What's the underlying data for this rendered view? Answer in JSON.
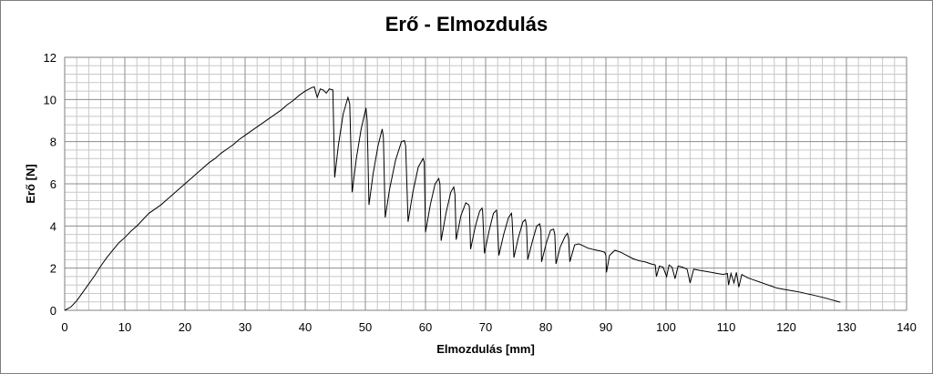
{
  "chart_data": {
    "type": "line",
    "title": "Erő - Elmozdulás",
    "xlabel": "Elmozdulás [mm]",
    "ylabel": "Erő [N]",
    "xlim": [
      0,
      140
    ],
    "ylim": [
      0,
      12
    ],
    "x_ticks": [
      "0",
      "10",
      "20",
      "30",
      "40",
      "50",
      "60",
      "70",
      "80",
      "90",
      "100",
      "110",
      "120",
      "130",
      "140"
    ],
    "y_ticks": [
      "0",
      "2",
      "4",
      "6",
      "8",
      "10",
      "12"
    ],
    "grid": true,
    "legend": "none",
    "series": [
      {
        "points": [
          [
            0,
            0
          ],
          [
            1,
            0.15
          ],
          [
            2,
            0.45
          ],
          [
            3,
            0.85
          ],
          [
            4,
            1.25
          ],
          [
            5,
            1.65
          ],
          [
            6,
            2.1
          ],
          [
            7,
            2.5
          ],
          [
            8,
            2.85
          ],
          [
            9,
            3.2
          ],
          [
            10,
            3.45
          ],
          [
            11,
            3.75
          ],
          [
            12,
            4.0
          ],
          [
            13,
            4.3
          ],
          [
            14,
            4.6
          ],
          [
            15,
            4.8
          ],
          [
            16,
            5.0
          ],
          [
            17,
            5.25
          ],
          [
            18,
            5.5
          ],
          [
            19,
            5.75
          ],
          [
            20,
            6.0
          ],
          [
            21,
            6.25
          ],
          [
            22,
            6.5
          ],
          [
            23,
            6.75
          ],
          [
            24,
            7.0
          ],
          [
            25,
            7.2
          ],
          [
            26,
            7.45
          ],
          [
            27,
            7.65
          ],
          [
            28,
            7.85
          ],
          [
            29,
            8.1
          ],
          [
            30,
            8.3
          ],
          [
            31,
            8.5
          ],
          [
            32,
            8.7
          ],
          [
            33,
            8.9
          ],
          [
            34,
            9.1
          ],
          [
            35,
            9.3
          ],
          [
            36,
            9.5
          ],
          [
            37,
            9.75
          ],
          [
            38,
            9.95
          ],
          [
            39,
            10.2
          ],
          [
            40,
            10.4
          ],
          [
            41,
            10.55
          ],
          [
            41.5,
            10.6
          ],
          [
            42,
            10.1
          ],
          [
            42.5,
            10.5
          ],
          [
            43,
            10.45
          ],
          [
            43.5,
            10.3
          ],
          [
            44,
            10.5
          ],
          [
            44.6,
            10.45
          ],
          [
            44.9,
            6.3
          ],
          [
            45.5,
            7.8
          ],
          [
            46.3,
            9.3
          ],
          [
            47.1,
            10.1
          ],
          [
            47.4,
            9.8
          ],
          [
            47.8,
            5.6
          ],
          [
            48.5,
            7.2
          ],
          [
            49.3,
            8.6
          ],
          [
            50.1,
            9.6
          ],
          [
            50.3,
            9.0
          ],
          [
            50.6,
            5.0
          ],
          [
            51.3,
            6.5
          ],
          [
            52.1,
            7.8
          ],
          [
            52.8,
            8.6
          ],
          [
            53.0,
            8.2
          ],
          [
            53.3,
            4.4
          ],
          [
            54.0,
            5.7
          ],
          [
            55.0,
            7.1
          ],
          [
            56.0,
            8.0
          ],
          [
            56.5,
            8.05
          ],
          [
            56.7,
            7.8
          ],
          [
            57.1,
            4.2
          ],
          [
            57.9,
            5.6
          ],
          [
            58.8,
            6.8
          ],
          [
            59.6,
            7.2
          ],
          [
            59.8,
            7.0
          ],
          [
            60.0,
            3.7
          ],
          [
            60.8,
            5.0
          ],
          [
            61.6,
            6.0
          ],
          [
            62.2,
            6.25
          ],
          [
            62.4,
            6.0
          ],
          [
            62.6,
            3.3
          ],
          [
            63.4,
            4.6
          ],
          [
            64.2,
            5.6
          ],
          [
            64.7,
            5.85
          ],
          [
            64.9,
            5.5
          ],
          [
            65.1,
            3.35
          ],
          [
            65.9,
            4.5
          ],
          [
            66.7,
            5.1
          ],
          [
            67.2,
            5.0
          ],
          [
            67.3,
            4.9
          ],
          [
            67.5,
            2.9
          ],
          [
            68.3,
            4.0
          ],
          [
            69.0,
            4.7
          ],
          [
            69.4,
            4.85
          ],
          [
            69.5,
            4.7
          ],
          [
            69.8,
            2.7
          ],
          [
            70.6,
            3.8
          ],
          [
            71.3,
            4.6
          ],
          [
            71.8,
            4.75
          ],
          [
            71.9,
            4.5
          ],
          [
            72.2,
            2.6
          ],
          [
            73.0,
            3.6
          ],
          [
            73.8,
            4.4
          ],
          [
            74.3,
            4.6
          ],
          [
            74.4,
            4.3
          ],
          [
            74.7,
            2.5
          ],
          [
            75.4,
            3.4
          ],
          [
            76.2,
            4.2
          ],
          [
            76.6,
            4.3
          ],
          [
            76.8,
            4.0
          ],
          [
            77.0,
            2.4
          ],
          [
            77.8,
            3.3
          ],
          [
            78.5,
            4.0
          ],
          [
            79.0,
            4.1
          ],
          [
            79.2,
            3.8
          ],
          [
            79.3,
            2.3
          ],
          [
            80.1,
            3.2
          ],
          [
            80.8,
            3.8
          ],
          [
            81.3,
            3.85
          ],
          [
            81.5,
            3.6
          ],
          [
            81.7,
            2.2
          ],
          [
            82.4,
            3.0
          ],
          [
            83.2,
            3.5
          ],
          [
            83.6,
            3.65
          ],
          [
            83.8,
            3.4
          ],
          [
            84.0,
            2.3
          ],
          [
            84.8,
            3.1
          ],
          [
            85.5,
            3.15
          ],
          [
            86.3,
            3.05
          ],
          [
            87.0,
            2.95
          ],
          [
            87.7,
            2.9
          ],
          [
            88.5,
            2.85
          ],
          [
            89.3,
            2.8
          ],
          [
            89.8,
            2.75
          ],
          [
            90.0,
            2.6
          ],
          [
            90.1,
            1.8
          ],
          [
            90.6,
            2.6
          ],
          [
            91.5,
            2.85
          ],
          [
            92.5,
            2.75
          ],
          [
            93.5,
            2.6
          ],
          [
            94.5,
            2.45
          ],
          [
            95.5,
            2.35
          ],
          [
            96.5,
            2.3
          ],
          [
            97.5,
            2.2
          ],
          [
            98.2,
            2.15
          ],
          [
            98.4,
            1.6
          ],
          [
            98.9,
            2.1
          ],
          [
            99.5,
            2.05
          ],
          [
            100.1,
            1.6
          ],
          [
            100.5,
            2.15
          ],
          [
            101.0,
            2.05
          ],
          [
            101.5,
            1.5
          ],
          [
            102.0,
            2.1
          ],
          [
            102.7,
            2.05
          ],
          [
            103.5,
            1.95
          ],
          [
            104.0,
            1.3
          ],
          [
            104.6,
            1.95
          ],
          [
            105.5,
            1.9
          ],
          [
            106.5,
            1.85
          ],
          [
            107.5,
            1.8
          ],
          [
            108.5,
            1.75
          ],
          [
            109.5,
            1.7
          ],
          [
            110.2,
            1.75
          ],
          [
            110.4,
            1.2
          ],
          [
            110.8,
            1.75
          ],
          [
            111.3,
            1.3
          ],
          [
            111.7,
            1.8
          ],
          [
            112.1,
            1.1
          ],
          [
            112.6,
            1.7
          ],
          [
            113.5,
            1.55
          ],
          [
            114.5,
            1.45
          ],
          [
            115.5,
            1.35
          ],
          [
            116.5,
            1.25
          ],
          [
            117.5,
            1.15
          ],
          [
            118.5,
            1.05
          ],
          [
            119.5,
            1.0
          ],
          [
            120.5,
            0.95
          ],
          [
            121.5,
            0.9
          ],
          [
            122.5,
            0.85
          ],
          [
            123.5,
            0.78
          ],
          [
            124.5,
            0.72
          ],
          [
            125.5,
            0.65
          ],
          [
            126.5,
            0.58
          ],
          [
            127.5,
            0.5
          ],
          [
            128.5,
            0.42
          ],
          [
            129,
            0.38
          ]
        ]
      }
    ]
  }
}
